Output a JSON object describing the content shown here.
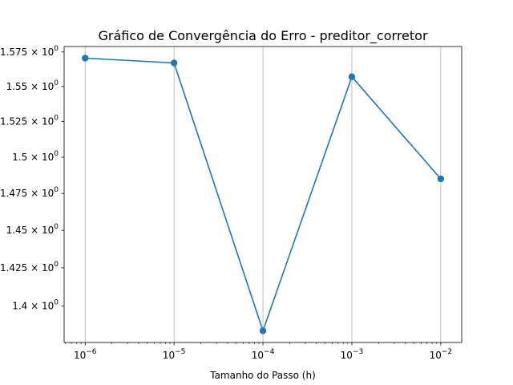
{
  "chart_data": {
    "type": "line",
    "title": "Gráfico de Convergência do Erro - preditor_corretor",
    "xlabel": "Tamanho do Passo (h)",
    "ylabel": "",
    "x_scale": "log",
    "y_scale": "log",
    "x": [
      1e-06,
      1e-05,
      0.0001,
      0.001,
      0.01
    ],
    "x_tick_labels": [
      {
        "base": "10",
        "exp": "−6"
      },
      {
        "base": "10",
        "exp": "−5"
      },
      {
        "base": "10",
        "exp": "−4"
      },
      {
        "base": "10",
        "exp": "−3"
      },
      {
        "base": "10",
        "exp": "−2"
      }
    ],
    "y_ticks": [
      1.4,
      1.425,
      1.45,
      1.475,
      1.5,
      1.525,
      1.55,
      1.575
    ],
    "y_tick_labels": [
      {
        "mant": "1.4 × 10",
        "exp": "0"
      },
      {
        "mant": "1.425 × 10",
        "exp": "0"
      },
      {
        "mant": "1.45 × 10",
        "exp": "0"
      },
      {
        "mant": "1.475 × 10",
        "exp": "0"
      },
      {
        "mant": "1.5 × 10",
        "exp": "0"
      },
      {
        "mant": "1.525 × 10",
        "exp": "0"
      },
      {
        "mant": "1.55 × 10",
        "exp": "0"
      },
      {
        "mant": "1.575 × 10",
        "exp": "0"
      }
    ],
    "series": [
      {
        "values": [
          1.5705,
          1.567,
          1.384,
          1.557,
          1.485
        ],
        "color": "#1f77b4"
      }
    ],
    "ylim": [
      1.3765,
      1.579
    ],
    "xlim": [
      5.8e-07,
      0.0172
    ],
    "grid": "x-major",
    "legend": "none"
  }
}
